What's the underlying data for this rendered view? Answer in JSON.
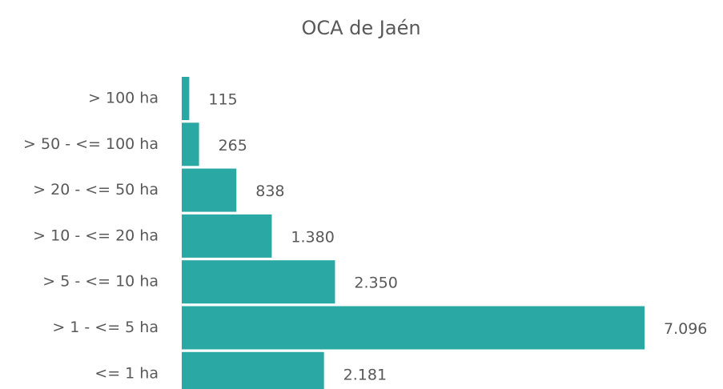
{
  "chart_data": {
    "type": "bar",
    "orientation": "horizontal",
    "title": "OCA de Jaén",
    "categories": [
      "> 100 ha",
      "> 50 - <= 100 ha",
      "> 20 - <= 50 ha",
      "> 10 - <= 20 ha",
      "> 5 - <= 10 ha",
      "> 1 - <= 5 ha",
      "<= 1 ha"
    ],
    "values": [
      115,
      265,
      838,
      1380,
      2350,
      7096,
      2181
    ],
    "value_labels": [
      "115",
      "265",
      "838",
      "1.380",
      "2.350",
      "7.096",
      "2.181"
    ],
    "color": "#2aa8a3"
  }
}
